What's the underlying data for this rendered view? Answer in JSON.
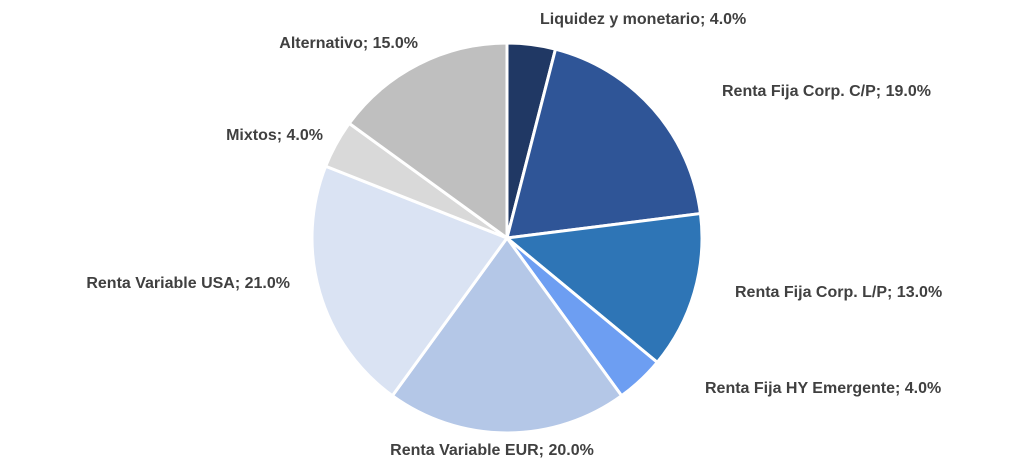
{
  "chart_data": {
    "type": "pie",
    "categories": [
      "Liquidez y monetario",
      "Renta Fija Corp. C/P",
      "Renta Fija Corp. L/P",
      "Renta Fija HY Emergente",
      "Renta Variable EUR",
      "Renta Variable USA",
      "Mixtos",
      "Alternativo"
    ],
    "values": [
      4,
      19,
      13,
      4,
      20,
      21,
      4,
      15
    ],
    "value_labels": [
      "4.0%",
      "19.0%",
      "13.0%",
      "4.0%",
      "20.0%",
      "21.0%",
      "4.0%",
      "15.0%"
    ],
    "label_separator": "; ",
    "colors": [
      "#203864",
      "#2f5597",
      "#2e75b6",
      "#6d9ef2",
      "#b4c7e7",
      "#dae3f3",
      "#d9d9d9",
      "#bfbfbf"
    ]
  }
}
